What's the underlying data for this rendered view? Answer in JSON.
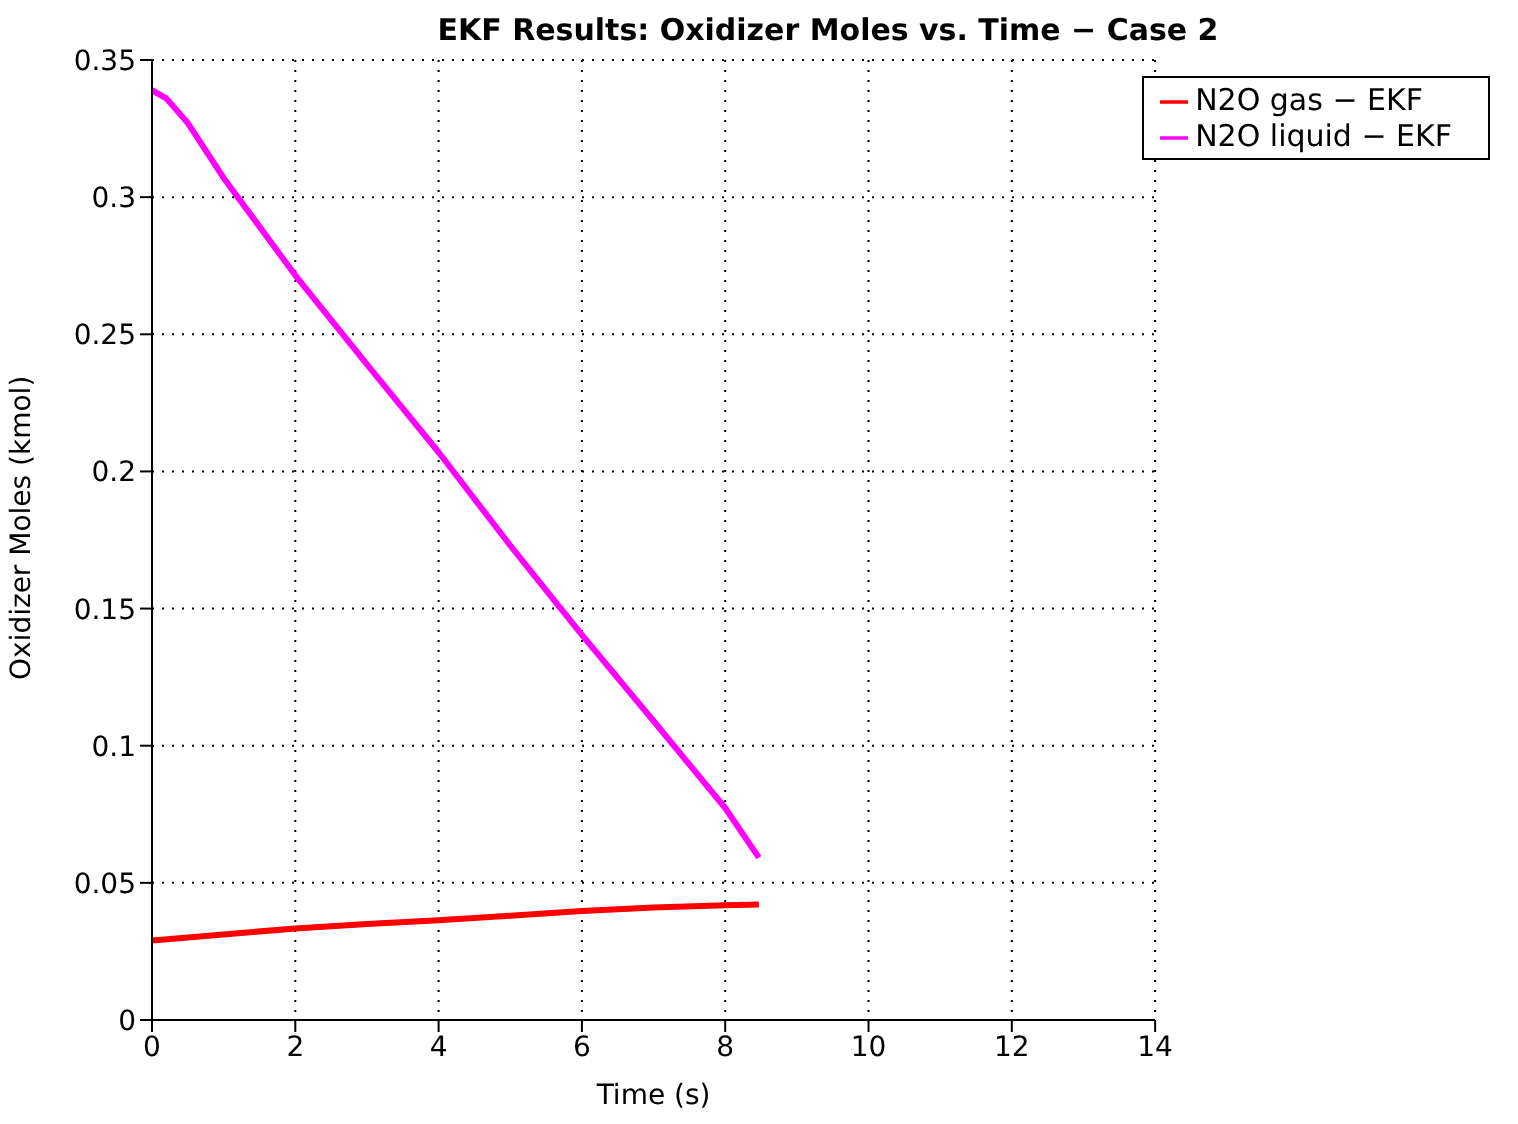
{
  "chart_data": {
    "type": "line",
    "title": "EKF Results:  Oxidizer Moles vs. Time − Case 2",
    "xlabel": "Time (s)",
    "ylabel": "Oxidizer Moles (kmol)",
    "series": [
      {
        "name": "N2O gas − EKF",
        "color": "#ff0000",
        "x": [
          0,
          1,
          2,
          3,
          4,
          5,
          6,
          7,
          8,
          8.47
        ],
        "values": [
          0.029,
          0.0312,
          0.0334,
          0.035,
          0.0364,
          0.038,
          0.0397,
          0.041,
          0.0418,
          0.0421
        ]
      },
      {
        "name": "N2O liquid − EKF",
        "color": "#ff00ff",
        "x": [
          0,
          0.2,
          0.5,
          1,
          2,
          3,
          4,
          5,
          6,
          7,
          8,
          8.47
        ],
        "values": [
          0.339,
          0.336,
          0.327,
          0.307,
          0.2715,
          0.239,
          0.207,
          0.173,
          0.1404,
          0.109,
          0.0773,
          0.0592
        ]
      }
    ],
    "xlim": [
      0,
      14
    ],
    "xticks": [
      0,
      2,
      4,
      6,
      8,
      10,
      12,
      14
    ],
    "ylim": [
      0,
      0.35
    ],
    "yticks": [
      0,
      0.05,
      0.1,
      0.15,
      0.2,
      0.25,
      0.3,
      0.35
    ],
    "grid": true,
    "legend": "top right",
    "line_style": "solid",
    "marker": "none"
  }
}
